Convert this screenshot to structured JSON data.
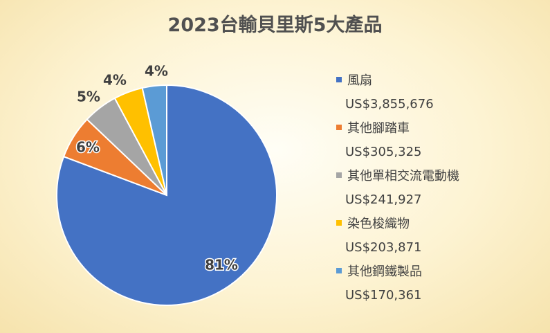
{
  "chart_data": {
    "type": "pie",
    "title": "2023台輸貝里斯5大產品",
    "slices": [
      {
        "label": "風扇",
        "value": 3855676,
        "value_label": "US$3,855,676",
        "percent_label": "81%",
        "color": "#4472C4"
      },
      {
        "label": "其他腳踏車",
        "value": 305325,
        "value_label": "US$305,325",
        "percent_label": "6%",
        "color": "#ED7D31"
      },
      {
        "label": "其他單相交流電動機",
        "value": 241927,
        "value_label": "US$241,927",
        "percent_label": "5%",
        "color": "#A5A5A5"
      },
      {
        "label": "染色梭織物",
        "value": 203871,
        "value_label": "US$203,871",
        "percent_label": "4%",
        "color": "#FFC000"
      },
      {
        "label": "其他鋼鐵製品",
        "value": 170361,
        "value_label": "US$170,361",
        "percent_label": "4%",
        "color": "#5B9BD5"
      }
    ],
    "legend_position": "right"
  }
}
